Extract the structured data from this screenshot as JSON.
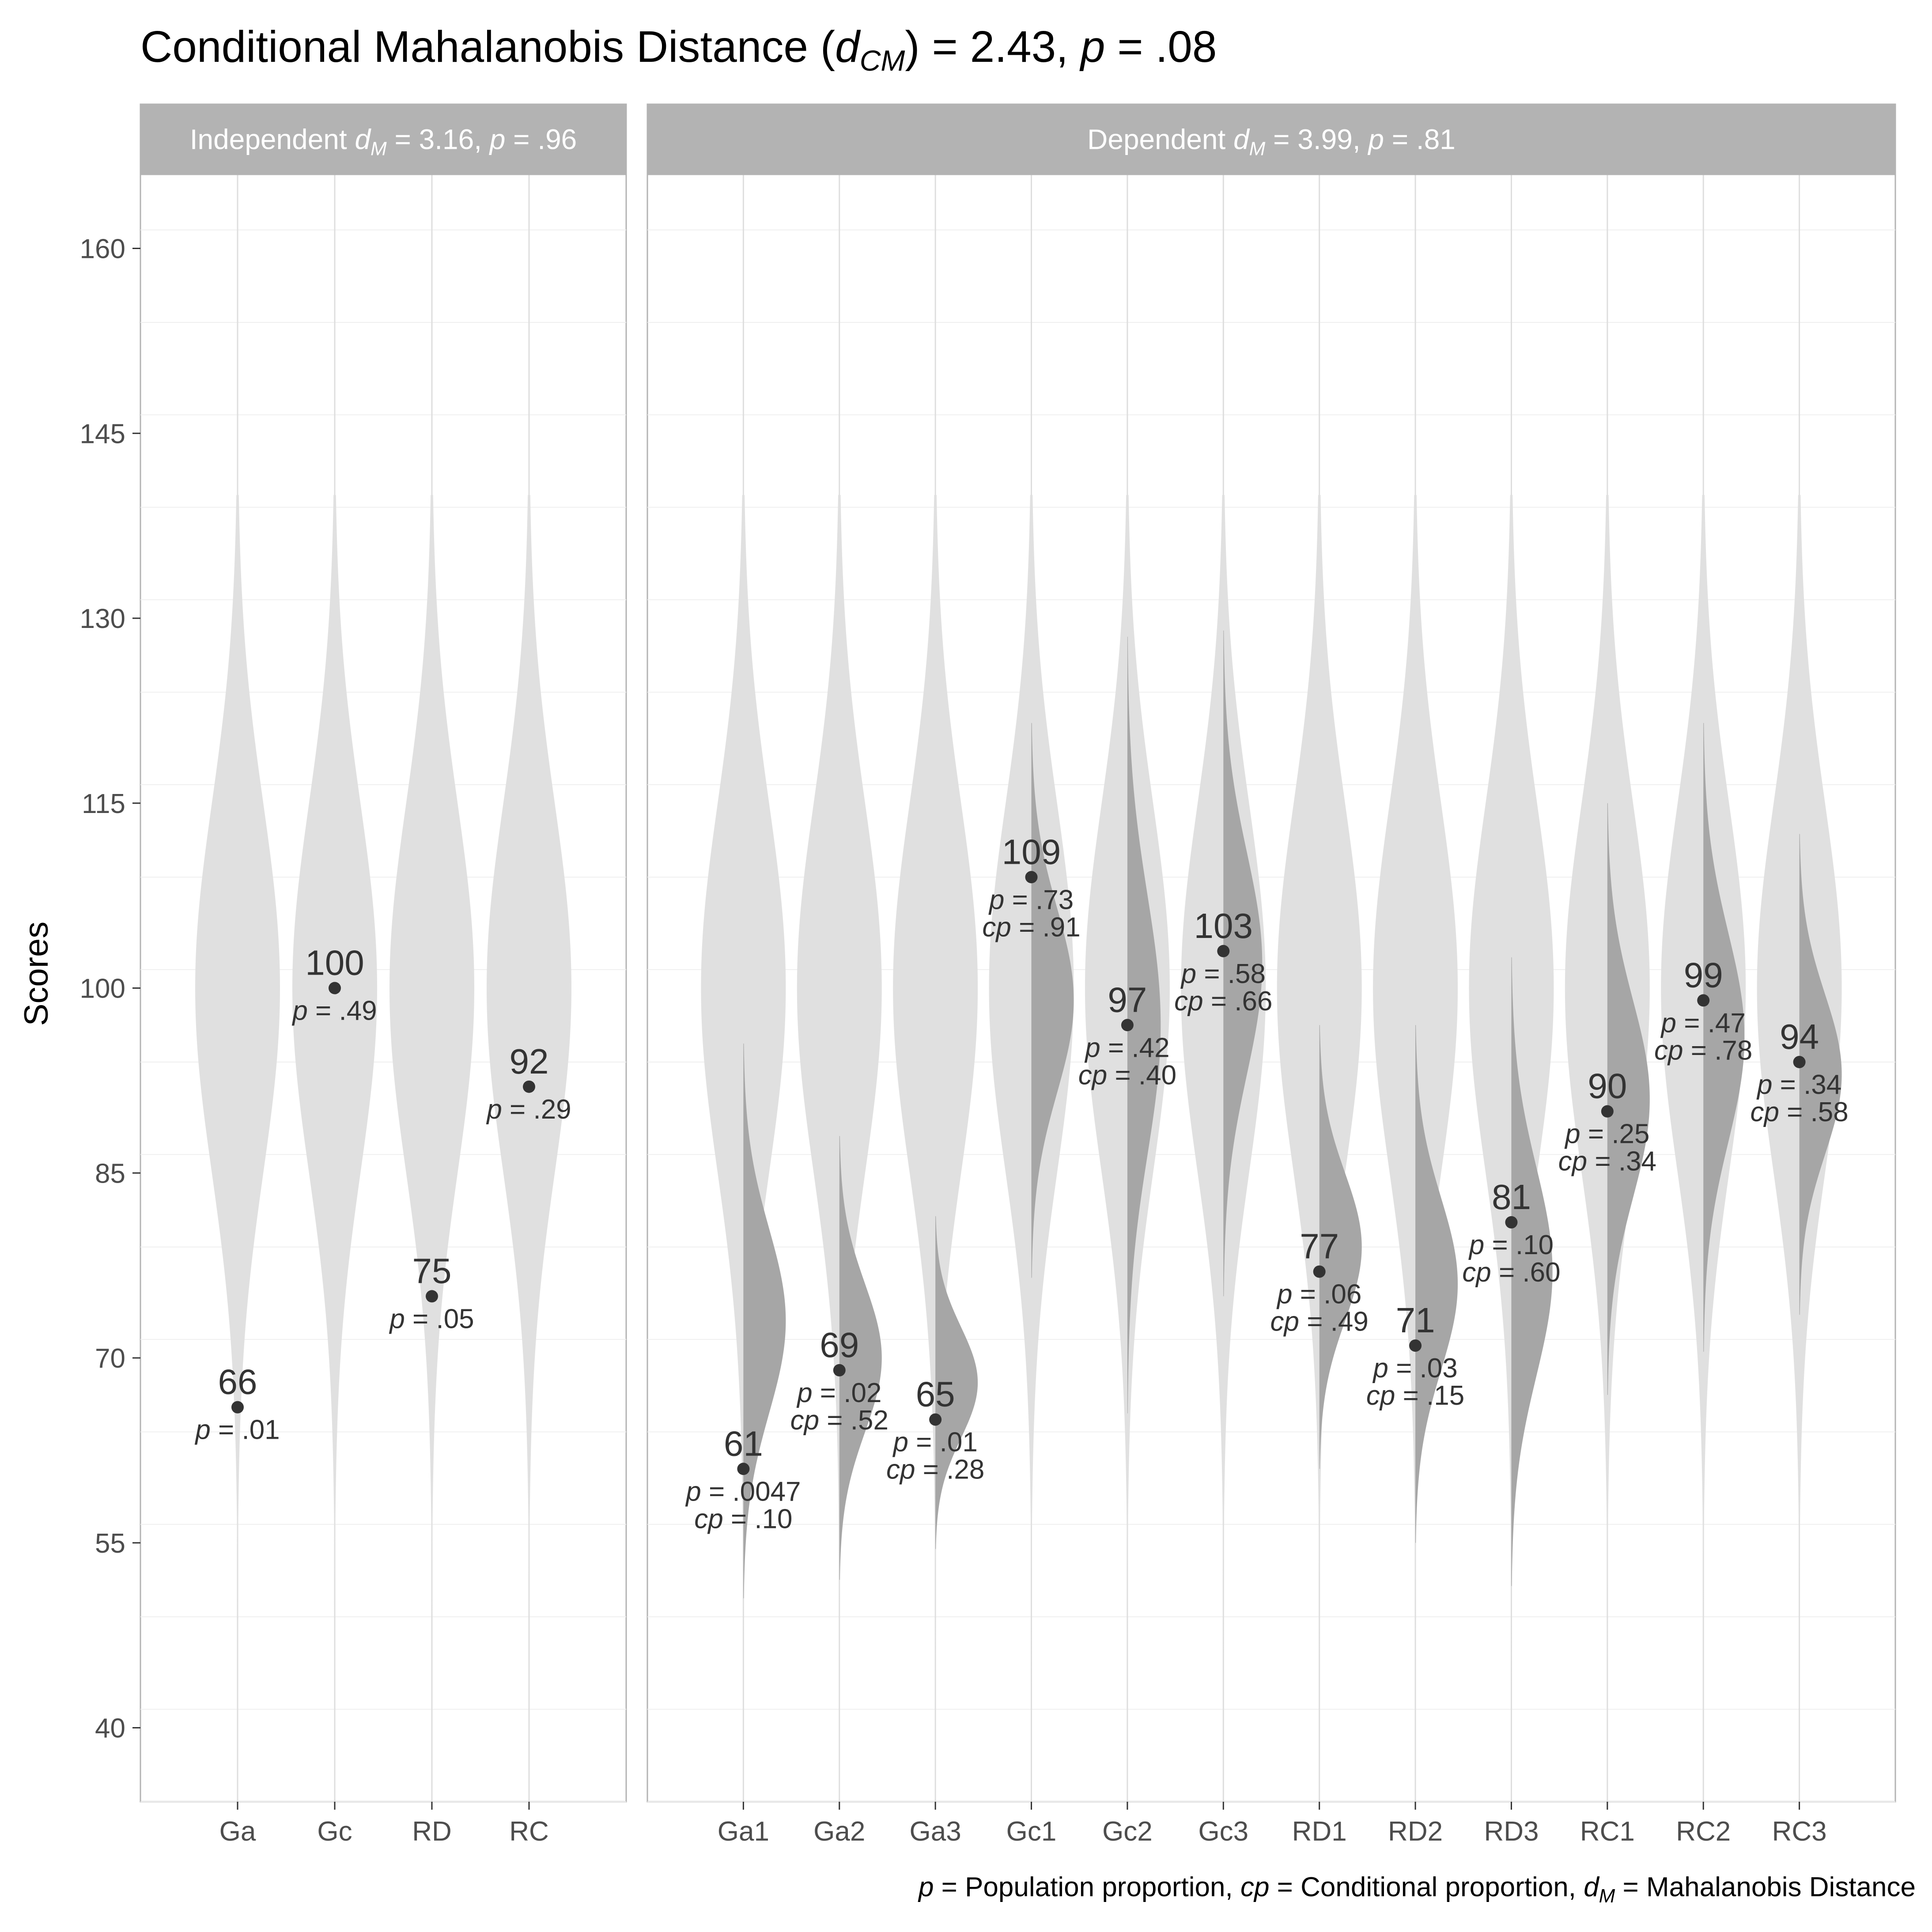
{
  "chart_data": {
    "type": "violin",
    "title": {
      "prefix": "Conditional Mahalanobis Distance (",
      "symbol": "d",
      "subscript": "CM",
      "suffix": ") = 2.43, ",
      "p_symbol": "p",
      "p_suffix": " = .08"
    },
    "ylabel": "Scores",
    "ylim": [
      34,
      166
    ],
    "yticks": [
      40,
      55,
      70,
      85,
      100,
      115,
      130,
      145,
      160
    ],
    "grid": true,
    "caption": {
      "p": "p",
      "p_text": " = Population proportion, ",
      "cp": "cp",
      "cp_text": " = Conditional proportion, ",
      "d": "d",
      "d_sub": "M",
      "d_text": " = Mahalanobis Distance"
    },
    "panels": [
      {
        "strip": {
          "label": "Independent ",
          "symbol": "d",
          "subscript": "M",
          "mid": " = 3.16, ",
          "p_symbol": "p",
          "p_text": " = .96"
        },
        "categories": [
          "Ga",
          "Gc",
          "RD",
          "RC"
        ],
        "values": [
          66,
          100,
          75,
          92
        ],
        "value_labels": [
          "66",
          "100",
          "75",
          "92"
        ],
        "p_labels": [
          " = .01",
          " = .49",
          " = .05",
          " = .29"
        ]
      },
      {
        "strip": {
          "label": "Dependent ",
          "symbol": "d",
          "subscript": "M",
          "mid": " = 3.99, ",
          "p_symbol": "p",
          "p_text": " = .81"
        },
        "categories": [
          "Ga1",
          "Ga2",
          "Ga3",
          "Gc1",
          "Gc2",
          "Gc3",
          "RD1",
          "RD2",
          "RD3",
          "RC1",
          "RC2",
          "RC3"
        ],
        "values": [
          61,
          69,
          65,
          109,
          97,
          103,
          77,
          71,
          81,
          90,
          99,
          94
        ],
        "value_labels": [
          "61",
          "69",
          "65",
          "109",
          "97",
          "103",
          "77",
          "71",
          "81",
          "90",
          "99",
          "94"
        ],
        "p_labels": [
          " = .0047",
          " = .02",
          " = .01",
          " = .73",
          " = .42",
          " = .58",
          " = .06",
          " = .03",
          " = .10",
          " = .25",
          " = .47",
          " = .34"
        ],
        "cp_labels": [
          " = .10",
          " = .52",
          " = .28",
          " = .91",
          " = .40",
          " = .66",
          " = .49",
          " = .15",
          " = .60",
          " = .34",
          " = .78",
          " = .58"
        ],
        "conditional_means": [
          73,
          70,
          68,
          99,
          97,
          102,
          79,
          76,
          77,
          91,
          96,
          93
        ],
        "conditional_sds": [
          7.5,
          6,
          4.5,
          7.5,
          10.5,
          9,
          6,
          7,
          8.5,
          8,
          8.5,
          6.5
        ]
      }
    ],
    "distribution": {
      "mean": 100,
      "sd": 15
    }
  }
}
